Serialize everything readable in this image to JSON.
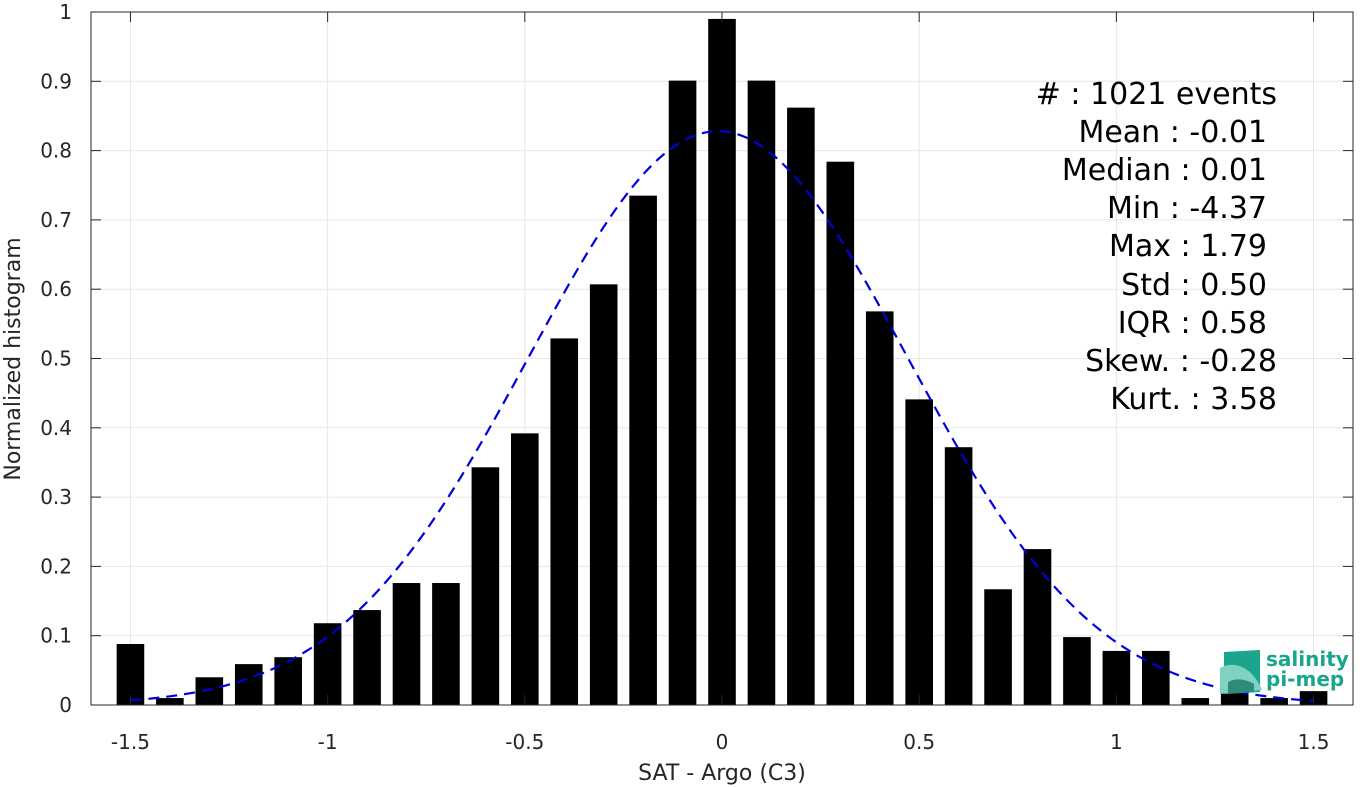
{
  "chart_data": {
    "type": "bar",
    "title": "",
    "xlabel": "SAT - Argo (C3)",
    "ylabel": "Normalized histogram",
    "xlim": [
      -1.6,
      1.6
    ],
    "ylim": [
      0,
      1
    ],
    "xticks": [
      -1.5,
      -1,
      -0.5,
      0,
      0.5,
      1,
      1.5
    ],
    "xtick_labels": [
      "-1.5",
      "-1",
      "-0.5",
      "0",
      "0.5",
      "1",
      "1.5"
    ],
    "yticks": [
      0,
      0.1,
      0.2,
      0.3,
      0.4,
      0.5,
      0.6,
      0.7,
      0.8,
      0.9,
      1
    ],
    "ytick_labels": [
      "0",
      "0.1",
      "0.2",
      "0.3",
      "0.4",
      "0.5",
      "0.6",
      "0.7",
      "0.8",
      "0.9",
      "1"
    ],
    "grid": true,
    "bar_color": "#000000",
    "bin_width": 0.1,
    "x": [
      -1.5,
      -1.4,
      -1.3,
      -1.2,
      -1.1,
      -1.0,
      -0.9,
      -0.8,
      -0.7,
      -0.6,
      -0.5,
      -0.4,
      -0.3,
      -0.2,
      -0.1,
      0.0,
      0.1,
      0.2,
      0.3,
      0.4,
      0.5,
      0.6,
      0.7,
      0.8,
      0.9,
      1.0,
      1.1,
      1.2,
      1.3,
      1.4,
      1.5
    ],
    "values": [
      0.088,
      0.01,
      0.04,
      0.059,
      0.069,
      0.118,
      0.137,
      0.176,
      0.176,
      0.343,
      0.392,
      0.529,
      0.607,
      0.735,
      0.901,
      0.99,
      0.901,
      0.862,
      0.784,
      0.568,
      0.441,
      0.372,
      0.167,
      0.225,
      0.098,
      0.078,
      0.078,
      0.01,
      0.02,
      0.01,
      0.02
    ],
    "fit_curve": {
      "style": "dashed",
      "color": "#0000dd",
      "mean": -0.01,
      "std": 0.48,
      "peak": 0.828,
      "x_range": [
        -1.5,
        1.5
      ]
    },
    "stats": [
      {
        "label": "#  : 1021 events"
      },
      {
        "label": "Mean : -0.01"
      },
      {
        "label": "Median : 0.01"
      },
      {
        "label": "Min : -4.37"
      },
      {
        "label": "Max : 1.79"
      },
      {
        "label": "Std : 0.50"
      },
      {
        "label": "IQR : 0.58"
      },
      {
        "label": "Skew. : -0.28"
      },
      {
        "label": "Kurt. : 3.58"
      }
    ]
  },
  "logo": {
    "line1": "salinity",
    "line2": "pi-mep",
    "colors": [
      "#1aa58c",
      "#7fd1c0",
      "#2e8b7a"
    ]
  }
}
